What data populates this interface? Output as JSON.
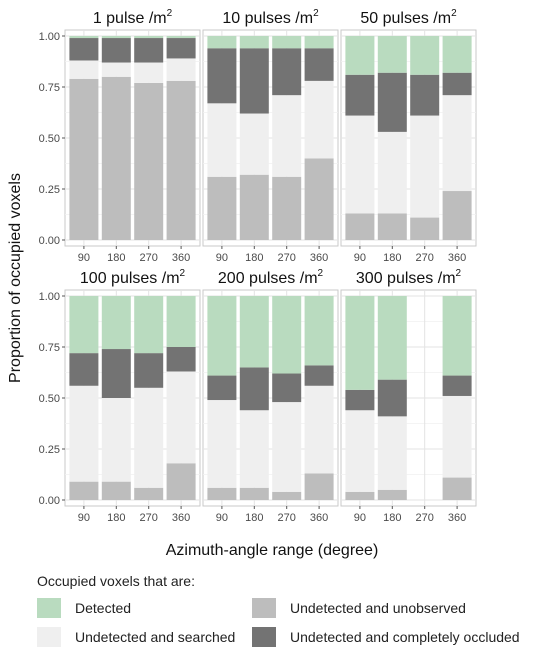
{
  "chart_data": {
    "type": "bar",
    "stacked": true,
    "panel_layout": "2 rows x 3 columns (facets)",
    "grid": true,
    "xlabel": "Azimuth-angle range (degree)",
    "ylabel": "Proportion of occupied voxels",
    "ylim": [
      0,
      1
    ],
    "yticks": [
      "0.00",
      "0.25",
      "0.50",
      "0.75",
      "1.00"
    ],
    "categories": [
      "90",
      "180",
      "270",
      "360"
    ],
    "colors": {
      "Detected": "#b9dbbf",
      "Undetected and searched": "#efefef",
      "Undetected and unobserved": "#bdbdbd",
      "Undetected and completely occluded": "#737373"
    },
    "stack_order_bottom_to_top": [
      "Undetected and unobserved",
      "Undetected and searched",
      "Undetected and completely occluded",
      "Detected"
    ],
    "panels": [
      {
        "title": "1 pulse /m",
        "title_sup": "2",
        "unobserved": [
          0.79,
          0.8,
          0.77,
          0.78
        ],
        "searched": [
          0.09,
          0.07,
          0.1,
          0.11
        ],
        "occluded": [
          0.11,
          0.12,
          0.12,
          0.1
        ],
        "detected": [
          0.01,
          0.01,
          0.01,
          0.01
        ]
      },
      {
        "title": "10 pulses /m",
        "title_sup": "2",
        "unobserved": [
          0.31,
          0.32,
          0.31,
          0.4
        ],
        "searched": [
          0.36,
          0.3,
          0.4,
          0.38
        ],
        "occluded": [
          0.27,
          0.32,
          0.23,
          0.16
        ],
        "detected": [
          0.06,
          0.06,
          0.06,
          0.06
        ]
      },
      {
        "title": "50 pulses /m",
        "title_sup": "2",
        "unobserved": [
          0.13,
          0.13,
          0.11,
          0.24
        ],
        "searched": [
          0.48,
          0.4,
          0.5,
          0.47
        ],
        "occluded": [
          0.2,
          0.29,
          0.2,
          0.11
        ],
        "detected": [
          0.19,
          0.18,
          0.19,
          0.18
        ]
      },
      {
        "title": "100 pulses /m",
        "title_sup": "2",
        "unobserved": [
          0.09,
          0.09,
          0.06,
          0.18
        ],
        "searched": [
          0.47,
          0.41,
          0.49,
          0.45
        ],
        "occluded": [
          0.16,
          0.24,
          0.17,
          0.12
        ],
        "detected": [
          0.28,
          0.26,
          0.28,
          0.25
        ]
      },
      {
        "title": "200 pulses /m",
        "title_sup": "2",
        "unobserved": [
          0.06,
          0.06,
          0.04,
          0.13
        ],
        "searched": [
          0.43,
          0.38,
          0.44,
          0.43
        ],
        "occluded": [
          0.12,
          0.21,
          0.14,
          0.1
        ],
        "detected": [
          0.39,
          0.35,
          0.38,
          0.34
        ]
      },
      {
        "title": "300 pulses /m",
        "title_sup": "2",
        "unobserved": [
          0.04,
          0.05,
          null,
          0.11
        ],
        "searched": [
          0.4,
          0.36,
          null,
          0.4
        ],
        "occluded": [
          0.1,
          0.18,
          null,
          0.1
        ],
        "detected": [
          0.46,
          0.41,
          null,
          0.39
        ]
      }
    ]
  },
  "legend": {
    "title": "Occupied voxels that are:",
    "items": [
      {
        "label": "Detected",
        "color": "#b9dbbf"
      },
      {
        "label": "Undetected and unobserved",
        "color": "#bdbdbd"
      },
      {
        "label": "Undetected and searched",
        "color": "#efefef"
      },
      {
        "label": "Undetected and completely occluded",
        "color": "#737373"
      }
    ]
  }
}
